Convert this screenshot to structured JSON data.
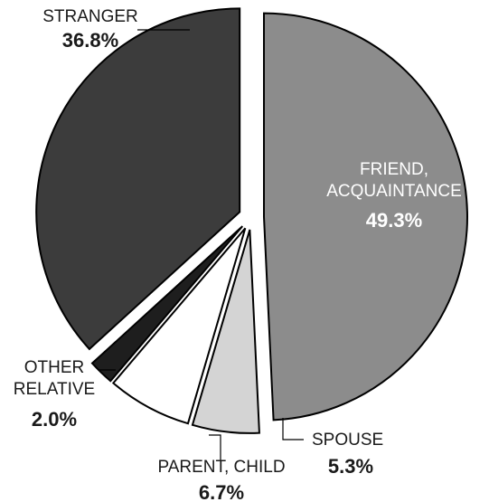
{
  "chart_data": {
    "type": "pie",
    "exploded": true,
    "slices": [
      {
        "label_lines": [
          "FRIEND,",
          "ACQUAINTANCE"
        ],
        "value": 49.3,
        "value_label": "49.3%",
        "color": "#8c8c8c"
      },
      {
        "label_lines": [
          "SPOUSE"
        ],
        "value": 5.3,
        "value_label": "5.3%",
        "color": "#d4d4d4"
      },
      {
        "label_lines": [
          "PARENT, CHILD"
        ],
        "value": 6.7,
        "value_label": "6.7%",
        "color": "#ffffff"
      },
      {
        "label_lines": [
          "OTHER",
          "RELATIVE"
        ],
        "value": 2.0,
        "value_label": "2.0%",
        "color": "#1e1e1e"
      },
      {
        "label_lines": [
          "STRANGER"
        ],
        "value": 36.8,
        "value_label": "36.8%",
        "color": "#3c3c3c"
      }
    ]
  }
}
